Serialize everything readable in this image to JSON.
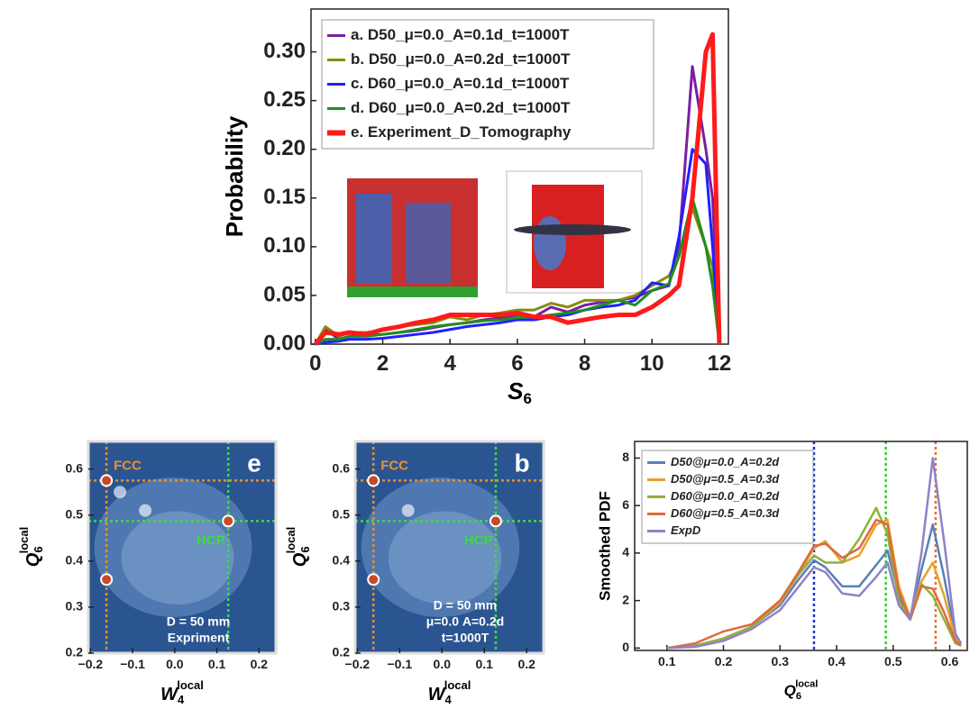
{
  "chart_data": [
    {
      "type": "line",
      "ylabel": "Probability",
      "xlabel": {
        "text": "S",
        "sub": "6"
      },
      "x": [
        0,
        0.3,
        0.7,
        1,
        1.5,
        2,
        2.5,
        3,
        3.5,
        4,
        4.5,
        5,
        5.5,
        6,
        6.5,
        7,
        7.5,
        8,
        8.5,
        9,
        9.5,
        10,
        10.5,
        10.8,
        11.2,
        11.6,
        11.8,
        12
      ],
      "series": [
        {
          "name": "a. D50_μ=0.0_A=0.1d_t=1000T",
          "color": "#7a1fa0",
          "values": [
            0,
            0.015,
            0.005,
            0.008,
            0.009,
            0.01,
            0.012,
            0.014,
            0.017,
            0.02,
            0.022,
            0.025,
            0.027,
            0.03,
            0.028,
            0.038,
            0.033,
            0.04,
            0.043,
            0.045,
            0.048,
            0.055,
            0.06,
            0.1,
            0.285,
            0.2,
            0.15,
            0
          ]
        },
        {
          "name": "b. D50_μ=0.0_A=0.2d_t=1000T",
          "color": "#8a8a10",
          "values": [
            0,
            0.018,
            0.008,
            0.012,
            0.012,
            0.014,
            0.018,
            0.02,
            0.022,
            0.028,
            0.025,
            0.03,
            0.032,
            0.035,
            0.035,
            0.042,
            0.038,
            0.045,
            0.045,
            0.045,
            0.05,
            0.06,
            0.07,
            0.09,
            0.14,
            0.1,
            0.08,
            0
          ]
        },
        {
          "name": "c. D60_μ=0.0_A=0.1d_t=1000T",
          "color": "#2020ff",
          "values": [
            0,
            0.002,
            0.003,
            0.005,
            0.005,
            0.006,
            0.008,
            0.01,
            0.012,
            0.015,
            0.018,
            0.02,
            0.022,
            0.025,
            0.025,
            0.028,
            0.03,
            0.035,
            0.038,
            0.04,
            0.045,
            0.063,
            0.06,
            0.11,
            0.2,
            0.185,
            0.1,
            0
          ]
        },
        {
          "name": "d. D60_μ=0.0_A=0.2d_t=1000T",
          "color": "#1f8f1f",
          "values": [
            0,
            0.005,
            0.005,
            0.008,
            0.008,
            0.01,
            0.012,
            0.015,
            0.018,
            0.02,
            0.022,
            0.024,
            0.025,
            0.027,
            0.028,
            0.03,
            0.032,
            0.035,
            0.04,
            0.045,
            0.04,
            0.055,
            0.062,
            0.09,
            0.15,
            0.1,
            0.06,
            0
          ]
        },
        {
          "name": "e. Experiment_D_Tomography",
          "color": "#ff1a1a",
          "values": [
            0,
            0.012,
            0.01,
            0.012,
            0.01,
            0.015,
            0.018,
            0.022,
            0.025,
            0.03,
            0.03,
            0.03,
            0.03,
            0.032,
            0.028,
            0.028,
            0.022,
            0.025,
            0.028,
            0.03,
            0.03,
            0.038,
            0.05,
            0.06,
            0.15,
            0.3,
            0.318,
            0
          ]
        }
      ],
      "xlim": [
        -0.13,
        12.27
      ],
      "ylim": [
        0,
        0.344
      ],
      "xticks": [
        0,
        2,
        4,
        6,
        8,
        10,
        12
      ],
      "yticks": [
        {
          "value": 0,
          "label": "0.00"
        },
        {
          "value": 0.05,
          "label": "0.05"
        },
        {
          "value": 0.1,
          "label": "0.10"
        },
        {
          "value": 0.15,
          "label": "0.15"
        },
        {
          "value": 0.2,
          "label": "0.20"
        },
        {
          "value": 0.25,
          "label": "0.25"
        },
        {
          "value": 0.3,
          "label": "0.30"
        }
      ],
      "legend": "upper left"
    },
    {
      "type": "heatmap",
      "panel_label": "e",
      "annotations": [
        "FCC",
        "HCP"
      ],
      "text_lines": [
        "D = 50 mm",
        "Expriment"
      ],
      "xlabel": {
        "text": "W",
        "sub": "4",
        "sup": "local"
      },
      "ylabel": {
        "text": "Q",
        "sub": "6",
        "sup": "local"
      },
      "xlim": [
        -0.205,
        0.24
      ],
      "ylim": [
        0.2,
        0.66
      ],
      "xticks": [
        {
          "value": -0.2,
          "label": "−0.2"
        },
        {
          "value": -0.1,
          "label": "−0.1"
        },
        {
          "value": 0,
          "label": "0.0"
        },
        0.1,
        0.2
      ],
      "yticks": [
        0.2,
        0.3,
        0.4,
        0.5,
        0.6
      ],
      "ref_lines": [
        {
          "axis": "x",
          "value": -0.162,
          "color": "#e8902a"
        },
        {
          "axis": "y",
          "value": 0.575,
          "color": "#e8902a"
        },
        {
          "axis": "x",
          "value": 0.127,
          "color": "#3ddc3d"
        },
        {
          "axis": "y",
          "value": 0.487,
          "color": "#3ddc3d"
        }
      ],
      "peaks": {
        "x": [
          -0.162,
          0.127,
          -0.162,
          -0.07,
          -0.13
        ],
        "y": [
          0.575,
          0.487,
          0.36,
          0.51,
          0.55
        ]
      }
    },
    {
      "type": "heatmap",
      "panel_label": "b",
      "annotations": [
        "FCC",
        "HCP"
      ],
      "text_lines": [
        "D = 50 mm",
        "μ=0.0 A=0.2d",
        "t=1000T"
      ],
      "xlabel": {
        "text": "W",
        "sub": "4",
        "sup": "local"
      },
      "ylabel": {
        "text": "Q",
        "sub": "6",
        "sup": "local"
      },
      "xlim": [
        -0.205,
        0.24
      ],
      "ylim": [
        0.2,
        0.66
      ],
      "xticks": [
        {
          "value": -0.2,
          "label": "−0.2"
        },
        {
          "value": -0.1,
          "label": "−0.1"
        },
        {
          "value": 0,
          "label": "0.0"
        },
        0.1,
        0.2
      ],
      "yticks": [
        0.2,
        0.3,
        0.4,
        0.5,
        0.6
      ],
      "ref_lines": [
        {
          "axis": "x",
          "value": -0.162,
          "color": "#e8902a"
        },
        {
          "axis": "y",
          "value": 0.575,
          "color": "#e8902a"
        },
        {
          "axis": "x",
          "value": 0.127,
          "color": "#3ddc3d"
        },
        {
          "axis": "y",
          "value": 0.487,
          "color": "#3ddc3d"
        }
      ],
      "peaks": {
        "x": [
          -0.162,
          0.127,
          -0.162,
          -0.08
        ],
        "y": [
          0.575,
          0.487,
          0.36,
          0.51
        ]
      }
    },
    {
      "type": "line",
      "ylabel": "Smoothed PDF",
      "xlabel": {
        "text": "Q",
        "sub": "6",
        "sup": "local"
      },
      "x": [
        0.1,
        0.15,
        0.2,
        0.25,
        0.3,
        0.33,
        0.36,
        0.38,
        0.41,
        0.44,
        0.47,
        0.49,
        0.51,
        0.53,
        0.55,
        0.57,
        0.59,
        0.61,
        0.62
      ],
      "series": [
        {
          "name": "D50@μ=0.0_A=0.2d",
          "color": "#5b7fb5",
          "values": [
            0,
            0.1,
            0.4,
            0.9,
            1.8,
            2.8,
            3.7,
            3.4,
            2.6,
            2.6,
            3.5,
            4.1,
            2.2,
            1.3,
            3.3,
            5.2,
            3.0,
            0.5,
            0.2
          ]
        },
        {
          "name": "D50@μ=0.5_A=0.3d",
          "color": "#e8a030",
          "values": [
            0,
            0.1,
            0.4,
            0.9,
            1.9,
            3.0,
            4.2,
            4.5,
            3.6,
            3.9,
            5.2,
            5.4,
            2.6,
            1.3,
            2.8,
            3.6,
            2.2,
            0.4,
            0.1
          ]
        },
        {
          "name": "D60@μ=0.0_A=0.2d",
          "color": "#8db33a",
          "values": [
            0,
            0.1,
            0.4,
            0.9,
            2.0,
            3.0,
            3.9,
            3.6,
            3.6,
            4.6,
            5.9,
            4.8,
            2.0,
            1.2,
            2.7,
            2.2,
            1.2,
            0.2,
            0.1
          ]
        },
        {
          "name": "D60@μ=0.5_A=0.3d",
          "color": "#e06a3a",
          "values": [
            0,
            0.2,
            0.7,
            1.0,
            2.0,
            3.1,
            4.3,
            4.4,
            3.8,
            4.2,
            5.4,
            5.2,
            2.4,
            1.2,
            2.6,
            2.5,
            1.5,
            0.3,
            0.1
          ]
        },
        {
          "name": "ExpD",
          "color": "#8f82c8",
          "values": [
            0,
            0.05,
            0.3,
            0.8,
            1.6,
            2.5,
            3.4,
            3.2,
            2.3,
            2.2,
            3.0,
            3.6,
            1.8,
            1.2,
            4.0,
            8.0,
            4.5,
            0.6,
            0.2
          ]
        }
      ],
      "xlim": [
        0.043,
        0.631
      ],
      "ylim": [
        -0.1,
        8.7
      ],
      "xticks": [
        0.1,
        0.2,
        0.3,
        0.4,
        0.5,
        0.6
      ],
      "yticks": [
        0,
        2,
        4,
        6,
        8
      ],
      "ref_lines": [
        {
          "axis": "x",
          "value": 0.36,
          "color": "#2030d0"
        },
        {
          "axis": "x",
          "value": 0.487,
          "color": "#30d030"
        },
        {
          "axis": "x",
          "value": 0.575,
          "color": "#e8702a"
        }
      ],
      "legend": "upper left"
    }
  ]
}
